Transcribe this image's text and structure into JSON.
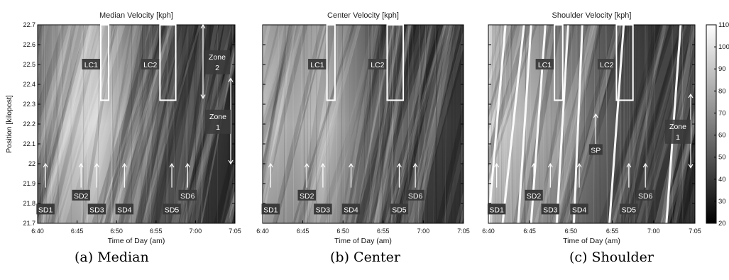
{
  "figure": {
    "y_axis_label": "Position [kilopost]",
    "x_axis_label": "Time of Day (am)",
    "colorbar_ticks": [
      "110",
      "100",
      "90",
      "80",
      "70",
      "60",
      "50",
      "40",
      "30",
      "20"
    ]
  },
  "panels": [
    {
      "title": "Median Velocity [kph]",
      "caption": "(a) Median",
      "labels": {
        "lc1": "LC1",
        "lc2": "LC2",
        "zone2": "Zone 2",
        "zone1": "Zone 1",
        "sd1": "SD1",
        "sd2": "SD2",
        "sd3": "SD3",
        "sd4": "SD4",
        "sd5": "SD5",
        "sd6": "SD6"
      }
    },
    {
      "title": "Center Velocity [kph]",
      "caption": "(b) Center",
      "labels": {
        "lc1": "LC1",
        "lc2": "LC2",
        "sd1": "SD1",
        "sd2": "SD2",
        "sd3": "SD3",
        "sd4": "SD4",
        "sd5": "SD5",
        "sd6": "SD6"
      }
    },
    {
      "title": "Shoulder Velocity [kph]",
      "caption": "(c) Shoulder",
      "labels": {
        "lc1": "LC1",
        "lc2": "LC2",
        "zone1": "Zone 1",
        "sp": "SP",
        "sd1": "SD1",
        "sd2": "SD2",
        "sd3": "SD3",
        "sd4": "SD4",
        "sd5": "SD5",
        "sd6": "SD6"
      }
    }
  ],
  "chart_data": [
    {
      "type": "heatmap",
      "title": "Median Velocity [kph]",
      "xlabel": "Time of Day (am)",
      "ylabel": "Position [kilopost]",
      "x_ticks": [
        "6:40",
        "6:45",
        "6:50",
        "6:55",
        "7:00",
        "7:05"
      ],
      "y_ticks": [
        "22.7",
        "22.6",
        "22.5",
        "22.4",
        "22.3",
        "22.2",
        "22.1",
        "22",
        "21.9",
        "21.8",
        "21.7"
      ],
      "xlim": [
        "6:40",
        "7:05"
      ],
      "ylim": [
        21.7,
        22.7
      ],
      "colorbar": {
        "min": 20,
        "max": 110,
        "colors": "grayscale (black low, white high)"
      },
      "boxes": [
        {
          "label": "LC1",
          "t_start": "6:48",
          "t_end": "6:49",
          "pos_start": 22.32,
          "pos_end": 22.7
        },
        {
          "label": "LC2",
          "t_start": "6:55.5",
          "t_end": "6:57.5",
          "pos_start": 22.32,
          "pos_end": 22.7
        }
      ],
      "arrows": [
        {
          "label": "SD1",
          "t": "6:41"
        },
        {
          "label": "SD2",
          "t": "6:45.5"
        },
        {
          "label": "SD3",
          "t": "6:47.5"
        },
        {
          "label": "SD4",
          "t": "6:51"
        },
        {
          "label": "SD5",
          "t": "6:57"
        },
        {
          "label": "SD6",
          "t": "6:59"
        }
      ],
      "zones": [
        {
          "label": "Zone 2",
          "pos_start": 22.33,
          "pos_end": 22.7
        },
        {
          "label": "Zone 1",
          "pos_start": 22.0,
          "pos_end": 22.43
        }
      ]
    },
    {
      "type": "heatmap",
      "title": "Center Velocity [kph]",
      "xlabel": "Time of Day (am)",
      "ylabel": "",
      "x_ticks": [
        "6:40",
        "6:45",
        "6:50",
        "6:55",
        "7:00",
        "7:05"
      ],
      "xlim": [
        "6:40",
        "7:05"
      ],
      "ylim": [
        21.7,
        22.7
      ],
      "colorbar": {
        "min": 20,
        "max": 110,
        "colors": "grayscale (black low, white high)"
      },
      "boxes": [
        {
          "label": "LC1",
          "t_start": "6:48",
          "t_end": "6:49",
          "pos_start": 22.32,
          "pos_end": 22.7
        },
        {
          "label": "LC2",
          "t_start": "6:55.5",
          "t_end": "6:57.5",
          "pos_start": 22.32,
          "pos_end": 22.7
        }
      ],
      "arrows": [
        {
          "label": "SD1",
          "t": "6:41"
        },
        {
          "label": "SD2",
          "t": "6:45.5"
        },
        {
          "label": "SD3",
          "t": "6:47.5"
        },
        {
          "label": "SD4",
          "t": "6:51"
        },
        {
          "label": "SD5",
          "t": "6:57"
        },
        {
          "label": "SD6",
          "t": "6:59"
        }
      ]
    },
    {
      "type": "heatmap",
      "title": "Shoulder Velocity [kph]",
      "xlabel": "Time of Day (am)",
      "ylabel": "",
      "x_ticks": [
        "6:40",
        "6:45",
        "6:50",
        "6:55",
        "7:00",
        "7:05"
      ],
      "xlim": [
        "6:40",
        "7:05"
      ],
      "ylim": [
        21.7,
        22.7
      ],
      "colorbar": {
        "min": 20,
        "max": 110,
        "colors": "grayscale (black low, white high)"
      },
      "boxes": [
        {
          "label": "LC1",
          "t_start": "6:48",
          "t_end": "6:49",
          "pos_start": 22.32,
          "pos_end": 22.7
        },
        {
          "label": "LC2",
          "t_start": "6:55.5",
          "t_end": "6:57.5",
          "pos_start": 22.32,
          "pos_end": 22.7
        }
      ],
      "arrows": [
        {
          "label": "SD1",
          "t": "6:41"
        },
        {
          "label": "SD2",
          "t": "6:45.5"
        },
        {
          "label": "SD3",
          "t": "6:47.5"
        },
        {
          "label": "SD4",
          "t": "6:51"
        },
        {
          "label": "SD5",
          "t": "6:57"
        },
        {
          "label": "SD6",
          "t": "6:59"
        },
        {
          "label": "SP",
          "t": "6:53"
        }
      ],
      "zones": [
        {
          "label": "Zone 1",
          "pos_start": 21.98,
          "pos_end": 22.35
        }
      ]
    }
  ]
}
